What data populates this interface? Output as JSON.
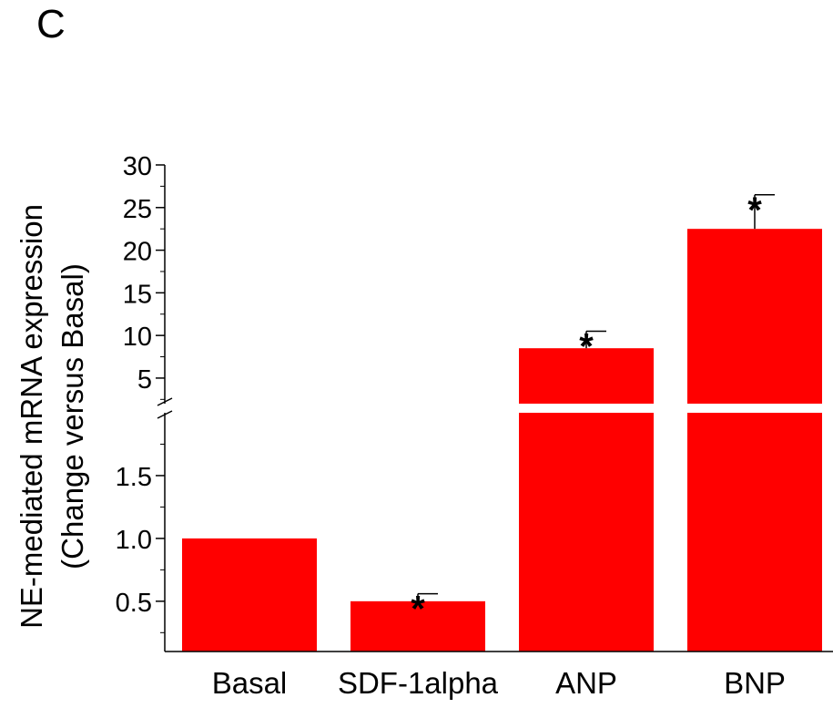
{
  "panel_label": "C",
  "colors": {
    "bar": "#ff0000",
    "axis": "#000000",
    "break_gap": "#ffffff"
  },
  "chart_data": {
    "type": "bar",
    "title": "",
    "xlabel": "",
    "ylabel_line1": "NE-mediated mRNA expression",
    "ylabel_line2": "(Change versus Basal)",
    "categories": [
      "Basal",
      "SDF-1alpha",
      "ANP",
      "BNP"
    ],
    "values": [
      1.0,
      0.5,
      8.5,
      22.5
    ],
    "errors": [
      0,
      0.06,
      2.0,
      4.0
    ],
    "significance": [
      "",
      "*",
      "*",
      "*"
    ],
    "y_axis_broken": true,
    "y_lower_segment": {
      "range": [
        0.1,
        2.0
      ],
      "ticks": [
        "0.5",
        "1.0",
        "1.5"
      ]
    },
    "y_upper_segment": {
      "range": [
        2.0,
        30
      ],
      "ticks": [
        "5",
        "10",
        "15",
        "20",
        "25",
        "30"
      ]
    }
  }
}
